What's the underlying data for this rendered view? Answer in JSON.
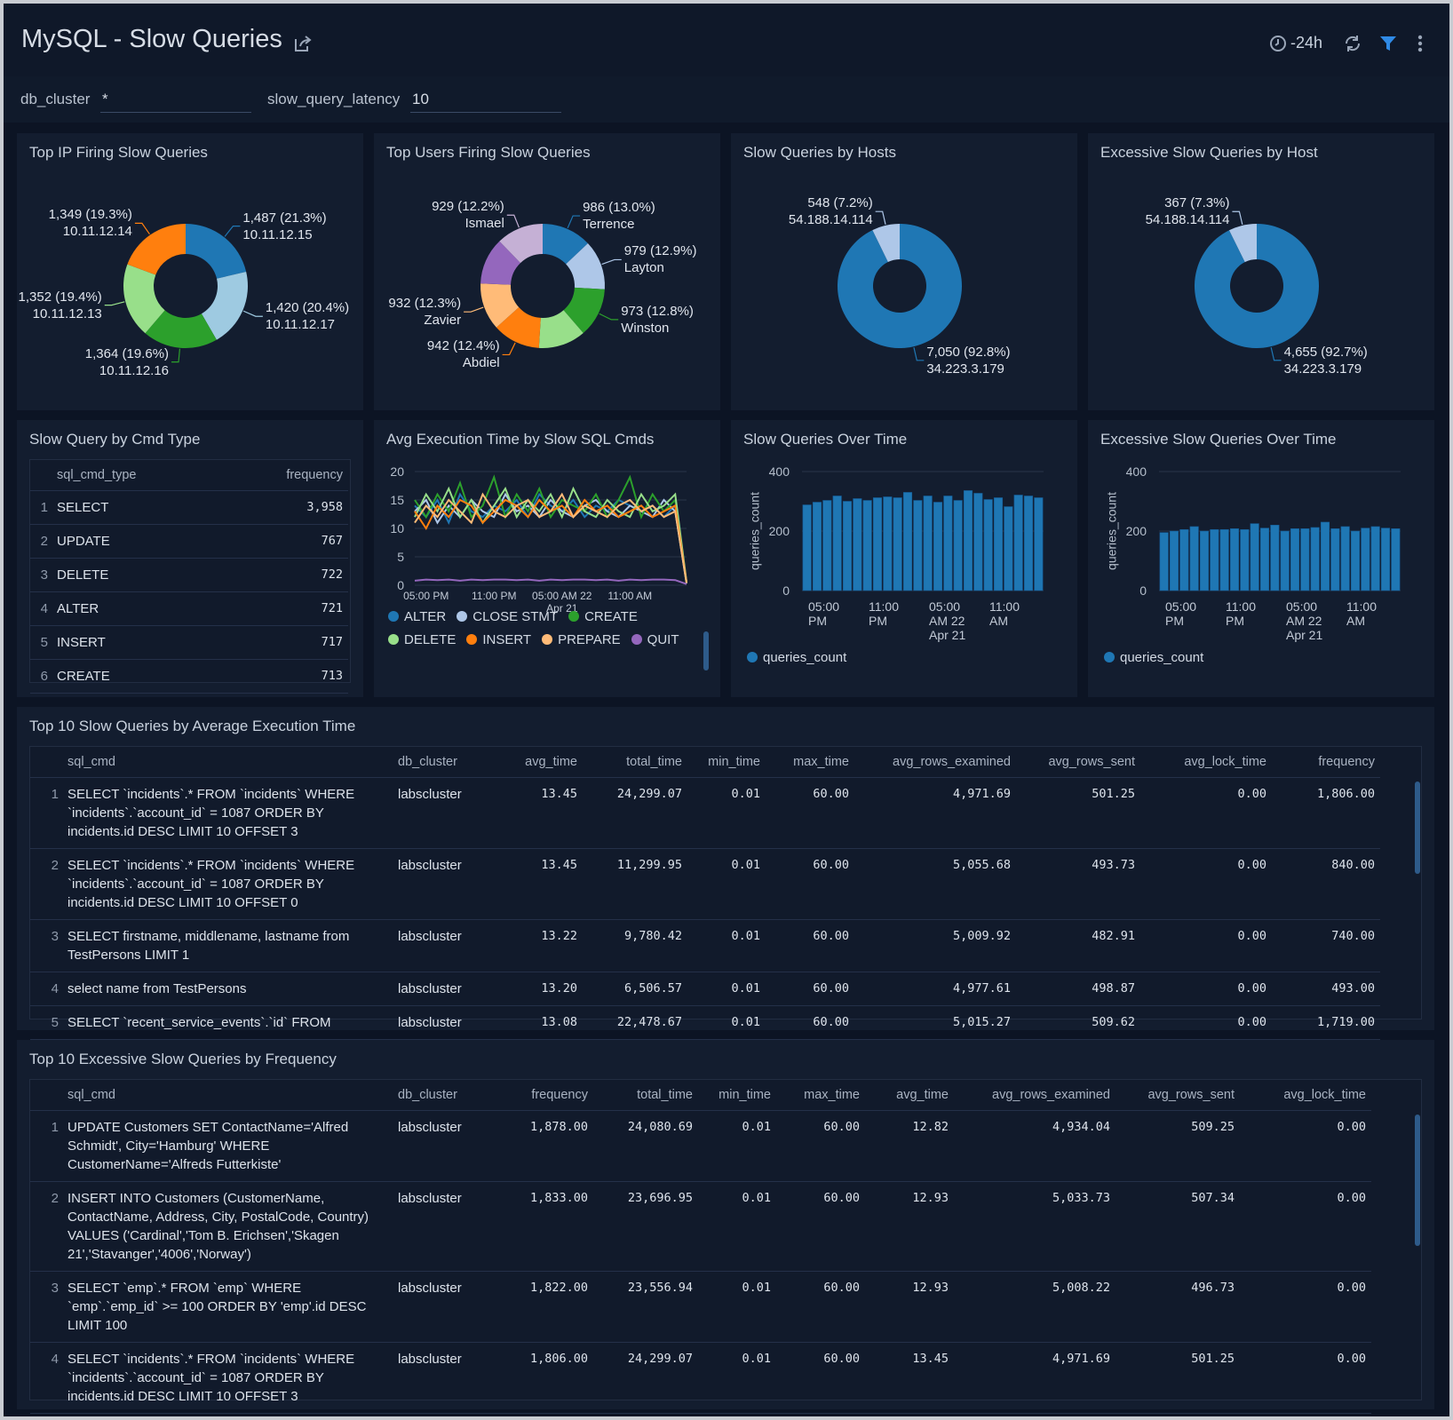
{
  "header": {
    "title": "MySQL - Slow Queries",
    "time_range": "-24h"
  },
  "filters": [
    {
      "label": "db_cluster",
      "value": "*"
    },
    {
      "label": "slow_query_latency",
      "value": "10"
    }
  ],
  "chart_data": [
    {
      "type": "pie",
      "title": "Top IP Firing Slow Queries",
      "categories": [
        "10.11.12.15",
        "10.11.12.17",
        "10.11.12.16",
        "10.11.12.13",
        "10.11.12.14"
      ],
      "values": [
        1487,
        1420,
        1364,
        1352,
        1349
      ],
      "value_labels": [
        "1,487 (21.3%)",
        "1,420 (20.4%)",
        "1,364 (19.6%)",
        "1,352 (19.4%)",
        "1,349 (19.3%)"
      ],
      "colors": [
        "#1f77b4",
        "#9ecae1",
        "#2ca02c",
        "#98df8a",
        "#ff7f0e"
      ]
    },
    {
      "type": "pie",
      "title": "Top Users Firing Slow Queries",
      "categories": [
        "Terrence",
        "Layton",
        "Winston",
        null,
        "Abdiel",
        "Zavier",
        null,
        "Ismael"
      ],
      "values": [
        986,
        979,
        973,
        935,
        942,
        932,
        924,
        929
      ],
      "value_labels": [
        "986 (13.0%)",
        "979 (12.9%)",
        "973 (12.8%)",
        null,
        "942 (12.4%)",
        "932 (12.3%)",
        null,
        "929 (12.2%)"
      ],
      "colors": [
        "#1f77b4",
        "#aec7e8",
        "#2ca02c",
        "#98df8a",
        "#ff7f0e",
        "#ffbb78",
        "#9467bd",
        "#c5b0d5"
      ]
    },
    {
      "type": "pie",
      "title": "Slow Queries by Hosts",
      "categories": [
        "34.223.3.179",
        "54.188.14.114"
      ],
      "values": [
        7050,
        548
      ],
      "value_labels": [
        "7,050 (92.8%)",
        "548 (7.2%)"
      ],
      "colors": [
        "#1f77b4",
        "#aec7e8"
      ]
    },
    {
      "type": "pie",
      "title": "Excessive Slow Queries by Host",
      "categories": [
        "34.223.3.179",
        "54.188.14.114"
      ],
      "values": [
        4655,
        367
      ],
      "value_labels": [
        "4,655 (92.7%)",
        "367 (7.3%)"
      ],
      "colors": [
        "#1f77b4",
        "#aec7e8"
      ]
    },
    {
      "type": "line",
      "title": "Avg Execution Time by Slow SQL Cmds",
      "categories": [
        null,
        "05:00 PM",
        null,
        null,
        null,
        null,
        null,
        "11:00 PM",
        null,
        null,
        null,
        null,
        null,
        "05:00 AM 22 Apr 21",
        null,
        null,
        null,
        null,
        null,
        "11:00 AM",
        null,
        null,
        null,
        null,
        null
      ],
      "ylim": [
        0,
        20
      ],
      "yticks": [
        0,
        5,
        10,
        15,
        20
      ],
      "grid": true,
      "series": [
        {
          "name": "ALTER",
          "color": "#1f77b4",
          "values": [
            14,
            12,
            15,
            11,
            16,
            13,
            12,
            14,
            13,
            15,
            12,
            16,
            14,
            13,
            15,
            12,
            14,
            13,
            15,
            14,
            13,
            14,
            12,
            14,
            0.5
          ]
        },
        {
          "name": "CLOSE STMT",
          "color": "#aec7e8",
          "values": [
            13,
            15,
            11,
            14,
            12,
            15,
            13,
            12,
            16,
            13,
            14,
            12,
            15,
            13,
            12,
            14,
            15,
            13,
            12,
            14,
            13,
            12,
            15,
            13,
            0.3
          ]
        },
        {
          "name": "CREATE",
          "color": "#2ca02c",
          "values": [
            15,
            12,
            16,
            13,
            18,
            12,
            14,
            19,
            12,
            16,
            13,
            17,
            12,
            15,
            14,
            13,
            16,
            12,
            15,
            19,
            12,
            16,
            13,
            15,
            0.4
          ]
        },
        {
          "name": "DELETE",
          "color": "#98df8a",
          "values": [
            12,
            16,
            13,
            17,
            12,
            15,
            11,
            14,
            17,
            12,
            15,
            13,
            16,
            12,
            17,
            13,
            12,
            15,
            13,
            12,
            16,
            13,
            14,
            16,
            0.6
          ]
        },
        {
          "name": "INSERT",
          "color": "#ff7f0e",
          "values": [
            13,
            10,
            14,
            12,
            15,
            14,
            11,
            13,
            15,
            14,
            12,
            15,
            13,
            14,
            12,
            15,
            13,
            14,
            12,
            13,
            14,
            12,
            13,
            14,
            0.5
          ]
        },
        {
          "name": "PREPARE",
          "color": "#ffbb78",
          "values": [
            11,
            14,
            12,
            15,
            13,
            11,
            16,
            13,
            12,
            14,
            15,
            12,
            13,
            16,
            12,
            14,
            13,
            12,
            14,
            15,
            13,
            14,
            12,
            13,
            0.4
          ]
        },
        {
          "name": "QUIT",
          "color": "#9467bd",
          "values": [
            0.8,
            1,
            0.9,
            1,
            0.8,
            1,
            0.9,
            1,
            1,
            0.9,
            1,
            0.8,
            1,
            0.9,
            1,
            1,
            0.9,
            1,
            0.8,
            1,
            0.9,
            1,
            1,
            0.9,
            0.2
          ]
        }
      ]
    },
    {
      "type": "bar",
      "title": "Slow Queries Over Time",
      "categories": [
        null,
        "05:00 PM",
        null,
        null,
        null,
        null,
        null,
        "11:00 PM",
        null,
        null,
        null,
        null,
        null,
        "05:00 AM 22 Apr 21",
        null,
        null,
        null,
        null,
        null,
        "11:00 AM",
        null,
        null,
        null,
        null
      ],
      "ylim": [
        0,
        400
      ],
      "yticks": [
        0,
        200,
        400
      ],
      "grid": true,
      "y_label": "queries_count",
      "series": [
        {
          "name": "queries_count",
          "color": "#1f77b4",
          "values": [
            288,
            297,
            303,
            318,
            300,
            309,
            303,
            312,
            315,
            312,
            330,
            303,
            318,
            297,
            318,
            303,
            336,
            327,
            306,
            312,
            282,
            321,
            318,
            312
          ]
        }
      ]
    },
    {
      "type": "bar",
      "title": "Excessive Slow Queries Over Time",
      "categories": [
        null,
        "05:00 PM",
        null,
        null,
        null,
        null,
        null,
        "11:00 PM",
        null,
        null,
        null,
        null,
        null,
        "05:00 AM 22 Apr 21",
        null,
        null,
        null,
        null,
        null,
        "11:00 AM",
        null,
        null,
        null,
        null
      ],
      "ylim": [
        0,
        400
      ],
      "yticks": [
        0,
        200,
        400
      ],
      "grid": true,
      "y_label": "queries_count",
      "series": [
        {
          "name": "queries_count",
          "color": "#1f77b4",
          "values": [
            195,
            200,
            205,
            215,
            200,
            205,
            205,
            208,
            205,
            225,
            210,
            220,
            200,
            208,
            208,
            212,
            230,
            208,
            215,
            200,
            210,
            215,
            210,
            208
          ]
        }
      ]
    }
  ],
  "cmd_table": {
    "title": "Slow Query by Cmd Type",
    "columns": [
      "sql_cmd_type",
      "frequency"
    ],
    "rows": [
      [
        "1",
        "SELECT",
        "3,958"
      ],
      [
        "2",
        "UPDATE",
        "767"
      ],
      [
        "3",
        "DELETE",
        "722"
      ],
      [
        "4",
        "ALTER",
        "721"
      ],
      [
        "5",
        "INSERT",
        "717"
      ],
      [
        "6",
        "CREATE",
        "713"
      ]
    ]
  },
  "tables": [
    {
      "title": "Top 10 Slow Queries by Average Execution Time",
      "columns": [
        "sql_cmd",
        "db_cluster",
        "avg_time",
        "total_time",
        "min_time",
        "max_time",
        "avg_rows_examined",
        "avg_rows_sent",
        "avg_lock_time",
        "frequency"
      ],
      "rows": [
        [
          "1",
          "SELECT `incidents`.* FROM `incidents` WHERE `incidents`.`account_id` = 1087 ORDER BY incidents.id DESC LIMIT 10 OFFSET 3",
          "labscluster",
          "13.45",
          "24,299.07",
          "0.01",
          "60.00",
          "4,971.69",
          "501.25",
          "0.00",
          "1,806.00"
        ],
        [
          "2",
          "SELECT `incidents`.* FROM `incidents` WHERE `incidents`.`account_id` = 1087 ORDER BY incidents.id DESC LIMIT 10 OFFSET 0",
          "labscluster",
          "13.45",
          "11,299.95",
          "0.01",
          "60.00",
          "5,055.68",
          "493.73",
          "0.00",
          "840.00"
        ],
        [
          "3",
          "SELECT firstname, middlename, lastname from TestPersons LIMIT 1",
          "labscluster",
          "13.22",
          "9,780.42",
          "0.01",
          "60.00",
          "5,009.92",
          "482.91",
          "0.00",
          "740.00"
        ],
        [
          "4",
          "select name from TestPersons",
          "labscluster",
          "13.20",
          "6,506.57",
          "0.01",
          "60.00",
          "4,977.61",
          "498.87",
          "0.00",
          "493.00"
        ],
        [
          "5",
          "SELECT `recent_service_events`.`id` FROM",
          "labscluster",
          "13.08",
          "22,478.67",
          "0.01",
          "60.00",
          "5,015.27",
          "509.62",
          "0.00",
          "1,719.00"
        ]
      ]
    },
    {
      "title": "Top 10 Excessive Slow Queries by Frequency",
      "columns": [
        "sql_cmd",
        "db_cluster",
        "frequency",
        "total_time",
        "min_time",
        "max_time",
        "avg_time",
        "avg_rows_examined",
        "avg_rows_sent",
        "avg_lock_time"
      ],
      "rows": [
        [
          "1",
          "UPDATE Customers SET ContactName='Alfred Schmidt', City='Hamburg' WHERE CustomerName='Alfreds Futterkiste'",
          "labscluster",
          "1,878.00",
          "24,080.69",
          "0.01",
          "60.00",
          "12.82",
          "4,934.04",
          "509.25",
          "0.00"
        ],
        [
          "2",
          "INSERT INTO Customers (CustomerName, ContactName, Address, City, PostalCode, Country) VALUES ('Cardinal','Tom B. Erichsen','Skagen 21','Stavanger','4006','Norway')",
          "labscluster",
          "1,833.00",
          "23,696.95",
          "0.01",
          "60.00",
          "12.93",
          "5,033.73",
          "507.34",
          "0.00"
        ],
        [
          "3",
          "SELECT `emp`.* FROM `emp` WHERE `emp`.`emp_id` >= 100 ORDER BY 'emp'.id DESC LIMIT 100",
          "labscluster",
          "1,822.00",
          "23,556.94",
          "0.01",
          "60.00",
          "12.93",
          "5,008.22",
          "496.73",
          "0.00"
        ],
        [
          "4",
          "SELECT `incidents`.* FROM `incidents` WHERE `incidents`.`account_id` = 1087 ORDER BY incidents.id DESC LIMIT 10 OFFSET 3",
          "labscluster",
          "1,806.00",
          "24,299.07",
          "0.01",
          "60.00",
          "13.45",
          "4,971.69",
          "501.25",
          "0.00"
        ]
      ]
    }
  ]
}
